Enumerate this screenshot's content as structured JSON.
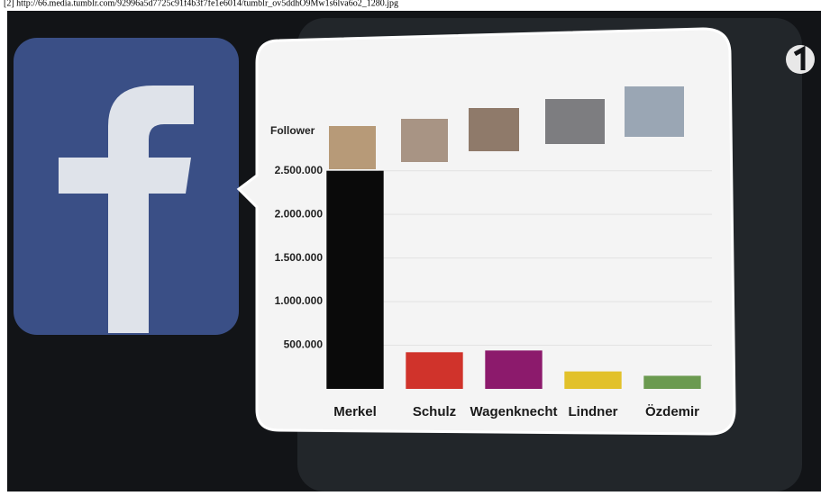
{
  "caption": "[2] http://66.media.tumblr.com/92996a5d7725c91f4b3f7fe1e6014/tumblr_ov5ddhO9Mw1s6lva6o2_1280.jpg",
  "chart_data": {
    "type": "bar",
    "y_label": "Follower",
    "categories": [
      "Merkel",
      "Schulz",
      "Wagenknecht",
      "Lindner",
      "Özdemir"
    ],
    "values": [
      2500000,
      420000,
      440000,
      200000,
      150000
    ],
    "colors": [
      "#0a0a0a",
      "#d0332b",
      "#8c1a6c",
      "#e2c12a",
      "#6b9a50"
    ],
    "ylim": [
      0,
      2600000
    ],
    "yticks": [
      {
        "value": 500000,
        "label": "500.000"
      },
      {
        "value": 1000000,
        "label": "1.000.000"
      },
      {
        "value": 1500000,
        "label": "1.500.000"
      },
      {
        "value": 2000000,
        "label": "2.000.000"
      },
      {
        "value": 2500000,
        "label": "2.500.000"
      }
    ],
    "grid": true
  }
}
